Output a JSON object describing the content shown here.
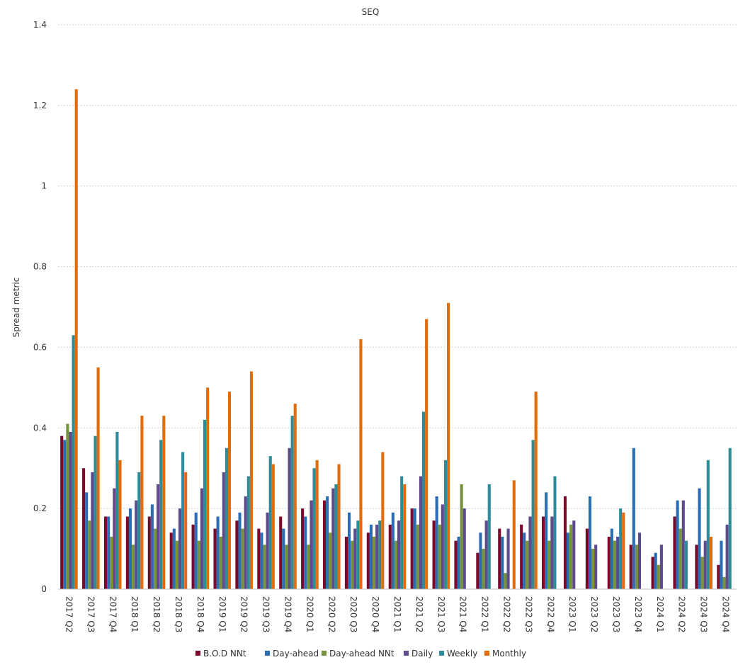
{
  "chart_data": {
    "type": "bar",
    "title": "SEQ",
    "ylabel": "Spread metric",
    "xlabel": "",
    "ylim": [
      0,
      1.4
    ],
    "yticks": [
      0,
      0.2,
      0.4,
      0.6,
      0.8,
      1,
      1.2,
      1.4
    ],
    "ytick_labels": [
      "0",
      "0.2",
      "0.4",
      "0.6",
      "0.8",
      "1",
      "1.2",
      "1.4"
    ],
    "grid": true,
    "legend_position": "bottom",
    "categories": [
      "2017 Q2",
      "2017 Q3",
      "2017 Q4",
      "2018 Q1",
      "2018 Q2",
      "2018 Q3",
      "2018 Q4",
      "2019 Q1",
      "2019 Q2",
      "2019 Q3",
      "2019 Q4",
      "2020 Q1",
      "2020 Q2",
      "2020 Q3",
      "2020 Q4",
      "2021 Q1",
      "2021 Q2",
      "2021 Q3",
      "2021 Q4",
      "2022 Q1",
      "2022 Q2",
      "2022 Q3",
      "2022 Q4",
      "2023 Q1",
      "2023 Q2",
      "2023 Q3",
      "2023 Q4",
      "2024 Q1",
      "2024 Q2",
      "2024 Q3",
      "2024 Q4"
    ],
    "series": [
      {
        "name": "B.O.D NNt",
        "color": "#7b0a2a",
        "values": [
          0.38,
          0.3,
          0.18,
          0.18,
          0.18,
          0.14,
          0.16,
          0.15,
          0.17,
          0.15,
          0.18,
          0.2,
          0.22,
          0.13,
          0.14,
          0.16,
          0.2,
          0.17,
          0.12,
          0.09,
          0.15,
          0.16,
          0.18,
          0.23,
          0.15,
          0.13,
          0.11,
          0.08,
          0.18,
          0.11,
          0.06
        ]
      },
      {
        "name": "Day-ahead",
        "color": "#2a6db5",
        "values": [
          0.37,
          0.24,
          0.18,
          0.2,
          0.21,
          0.15,
          0.19,
          0.18,
          0.19,
          0.14,
          0.15,
          0.18,
          0.23,
          0.19,
          0.16,
          0.19,
          0.2,
          0.23,
          0.13,
          0.14,
          0.13,
          0.14,
          0.24,
          0.14,
          0.23,
          0.15,
          0.35,
          0.09,
          0.22,
          0.25,
          0.12
        ]
      },
      {
        "name": "Day-ahead NNt",
        "color": "#77933c",
        "values": [
          0.41,
          0.17,
          0.13,
          0.11,
          0.15,
          0.12,
          0.12,
          0.13,
          0.15,
          0.11,
          0.11,
          0.11,
          0.14,
          0.12,
          0.13,
          0.12,
          0.16,
          0.16,
          0.26,
          0.1,
          0.04,
          0.12,
          0.12,
          0.16,
          0.1,
          0.12,
          0.11,
          0.06,
          0.15,
          0.08,
          0.03
        ]
      },
      {
        "name": "Daily",
        "color": "#5f4b8b",
        "values": [
          0.39,
          0.29,
          0.25,
          0.22,
          0.26,
          0.2,
          0.25,
          0.29,
          0.23,
          0.19,
          0.35,
          0.22,
          0.25,
          0.15,
          0.16,
          0.17,
          0.28,
          0.21,
          0.2,
          0.17,
          0.15,
          0.18,
          0.18,
          0.17,
          0.11,
          0.13,
          0.14,
          0.11,
          0.22,
          0.12,
          0.16
        ]
      },
      {
        "name": "Weekly",
        "color": "#2e8b9a",
        "values": [
          0.63,
          0.38,
          0.39,
          0.29,
          0.37,
          0.34,
          0.42,
          0.35,
          0.28,
          0.33,
          0.43,
          0.3,
          0.26,
          0.17,
          0.17,
          0.28,
          0.44,
          0.32,
          null,
          0.26,
          null,
          0.37,
          0.28,
          null,
          null,
          0.2,
          null,
          null,
          0.12,
          0.32,
          0.35
        ]
      },
      {
        "name": "Monthly",
        "color": "#e36c0a",
        "values": [
          1.24,
          0.55,
          0.32,
          0.43,
          0.43,
          0.29,
          0.5,
          0.49,
          0.54,
          0.31,
          0.46,
          0.32,
          0.31,
          0.62,
          0.34,
          0.26,
          0.67,
          0.71,
          null,
          null,
          0.27,
          0.49,
          null,
          null,
          null,
          0.19,
          null,
          null,
          null,
          0.13,
          null
        ]
      }
    ]
  }
}
